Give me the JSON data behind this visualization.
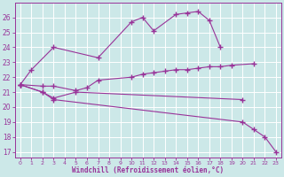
{
  "xlabel": "Windchill (Refroidissement éolien,°C)",
  "bg_color": "#cce8e8",
  "line_color": "#993399",
  "xlim": [
    -0.5,
    23.5
  ],
  "ylim": [
    16.6,
    27.0
  ],
  "yticks": [
    17,
    18,
    19,
    20,
    21,
    22,
    23,
    24,
    25,
    26
  ],
  "xticks": [
    0,
    1,
    2,
    3,
    4,
    5,
    6,
    7,
    8,
    9,
    10,
    11,
    12,
    13,
    14,
    15,
    16,
    17,
    18,
    19,
    20,
    21,
    22,
    23
  ],
  "series": [
    {
      "x": [
        0,
        1,
        3,
        7,
        10,
        11,
        12,
        14,
        15,
        16,
        17,
        18
      ],
      "y": [
        21.5,
        22.5,
        24.0,
        23.3,
        25.7,
        26.0,
        25.1,
        26.2,
        26.3,
        26.4,
        25.8,
        24.0
      ]
    },
    {
      "x": [
        0,
        2,
        3,
        5,
        6,
        7,
        10,
        11,
        12,
        13,
        14,
        15,
        16,
        17,
        18,
        19,
        21
      ],
      "y": [
        21.5,
        21.4,
        21.4,
        21.1,
        21.3,
        21.8,
        22.0,
        22.2,
        22.3,
        22.4,
        22.5,
        22.5,
        22.6,
        22.7,
        22.7,
        22.8,
        22.9
      ]
    },
    {
      "x": [
        0,
        2,
        3,
        5,
        20
      ],
      "y": [
        21.5,
        21.0,
        20.6,
        21.0,
        20.5
      ]
    },
    {
      "x": [
        0,
        2,
        3,
        20,
        21,
        22,
        23
      ],
      "y": [
        21.5,
        21.0,
        20.5,
        19.0,
        18.5,
        18.0,
        17.0
      ]
    }
  ]
}
